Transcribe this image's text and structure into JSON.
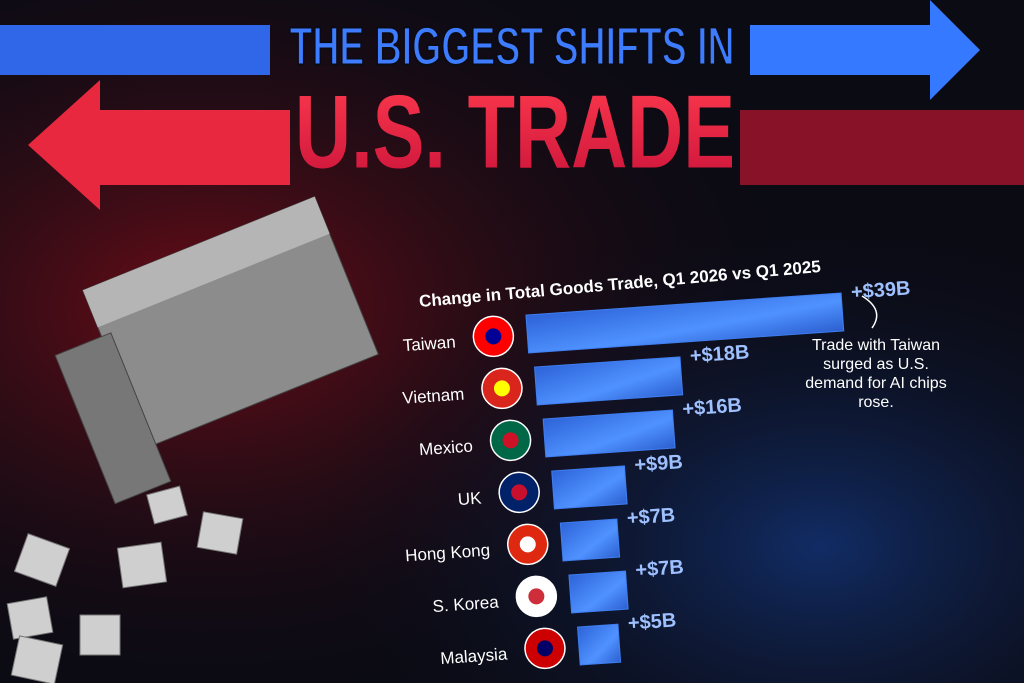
{
  "title": "THE BIGGEST SHIFTS IN",
  "title2": "U.S. TRADE",
  "chart_data": {
    "type": "bar",
    "subtitle": "Change in Total Goods Trade, Q1 2026 vs Q1 2025",
    "categories": [
      "Taiwan",
      "Vietnam",
      "Mexico",
      "UK",
      "Hong Kong",
      "S. Korea",
      "Malaysia"
    ],
    "values": [
      39,
      18,
      16,
      9,
      7,
      7,
      5
    ],
    "value_labels": [
      "+$39B",
      "+$18B",
      "+$16B",
      "+$9B",
      "+$7B",
      "+$7B",
      "+$5B"
    ],
    "color": "#3f7ef0",
    "annotation": "Trade with Taiwan surged as U.S. demand for AI chips rose."
  }
}
